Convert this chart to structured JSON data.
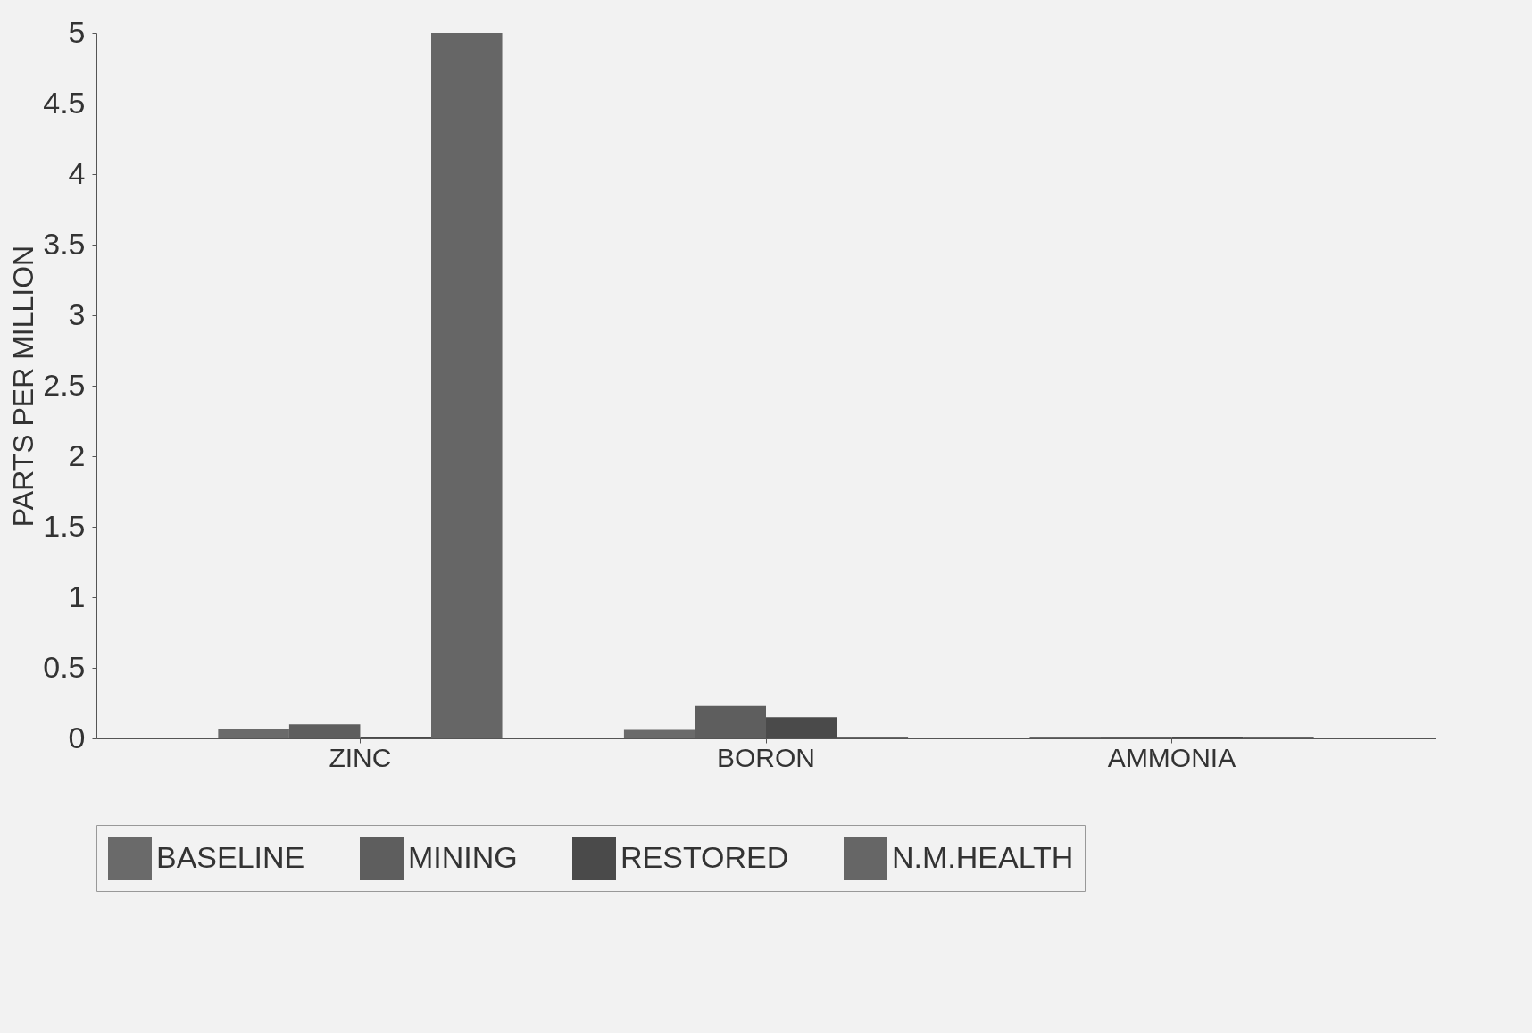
{
  "chart_data": {
    "type": "bar",
    "ylabel": "PARTS PER MILLION",
    "categories": [
      "ZINC",
      "BORON",
      "AMMONIA"
    ],
    "series": [
      {
        "name": "BASELINE",
        "color": "#6a6a6a",
        "values": [
          0.07,
          0.06,
          0.01
        ]
      },
      {
        "name": "MINING",
        "color": "#5e5e5e",
        "values": [
          0.1,
          0.23,
          0.01
        ]
      },
      {
        "name": "RESTORED",
        "color": "#4a4a4a",
        "values": [
          0.01,
          0.15,
          0.01
        ]
      },
      {
        "name": "N.M.HEALTH",
        "color": "#666666",
        "values": [
          5,
          0.01,
          0.01
        ]
      }
    ],
    "ylim": [
      0,
      5
    ],
    "yticks": [
      0,
      0.5,
      1,
      1.5,
      2,
      2.5,
      3,
      3.5,
      4,
      4.5,
      5
    ],
    "grid": false,
    "legend": "bottom"
  }
}
